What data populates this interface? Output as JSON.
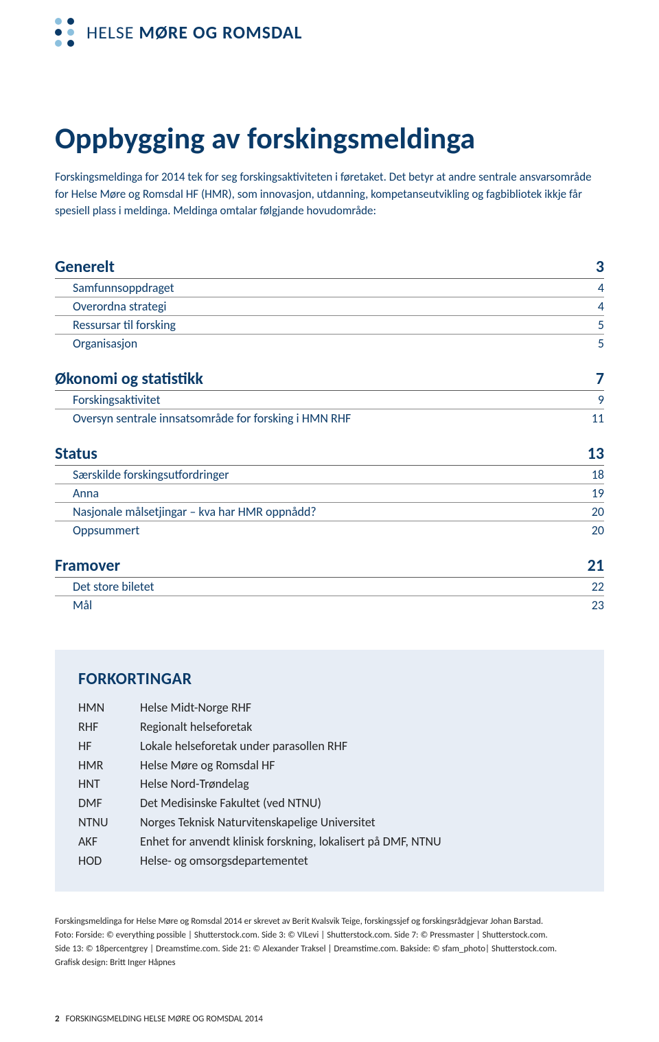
{
  "colors": {
    "brand_blue": "#0a3a68",
    "light_blue": "#8cc0de",
    "box_bg": "#e7edf5",
    "rule": "#888888",
    "rule_strong": "#555555",
    "text": "#222222",
    "background": "#ffffff"
  },
  "logo": {
    "text_light": "HELSE ",
    "text_bold": "MØRE OG ROMSDAL",
    "dot_colors": [
      "#8cc0de",
      "#0a3a68",
      "#0a3a68",
      "#8cc0de",
      "#8cc0de",
      "#0a3a68"
    ]
  },
  "title": "Oppbygging av forskingsmeldinga",
  "intro": "Forskingsmeldinga for 2014 tek for seg forskingsaktiviteten i føretaket. Det betyr at andre sentrale ansvarsområde for Helse Møre og Romsdal HF (HMR), som innovasjon, utdanning, kompetanseutvikling og fagbibliotek ikkje får spesiell plass i meldinga. Meldinga omtalar følgjande hovudområde:",
  "toc": [
    {
      "head": {
        "label": "Generelt",
        "page": "3"
      },
      "subs": [
        {
          "label": "Samfunnsoppdraget",
          "page": "4"
        },
        {
          "label": "Overordna strategi",
          "page": "4"
        },
        {
          "label": "Ressursar til forsking",
          "page": "5"
        },
        {
          "label": "Organisasjon",
          "page": "5"
        }
      ]
    },
    {
      "head": {
        "label": "Økonomi og statistikk",
        "page": "7"
      },
      "subs": [
        {
          "label": "Forskingsaktivitet",
          "page": "9"
        },
        {
          "label": "Oversyn sentrale innsatsområde for forsking i HMN RHF",
          "page": "11"
        }
      ]
    },
    {
      "head": {
        "label": "Status",
        "page": "13"
      },
      "subs": [
        {
          "label": "Særskilde forskingsutfordringer",
          "page": "18"
        },
        {
          "label": "Anna",
          "page": "19"
        },
        {
          "label": "Nasjonale målsetjingar – kva har HMR oppnådd?",
          "page": "20"
        },
        {
          "label": "Oppsummert",
          "page": "20"
        }
      ]
    },
    {
      "head": {
        "label": "Framover",
        "page": "21"
      },
      "subs": [
        {
          "label": "Det store biletet",
          "page": "22"
        },
        {
          "label": "Mål",
          "page": "23"
        }
      ]
    }
  ],
  "abbr": {
    "title": "FORKORTINGAR",
    "items": [
      {
        "key": "HMN",
        "val": "Helse Midt-Norge RHF"
      },
      {
        "key": "RHF",
        "val": "Regionalt helseforetak"
      },
      {
        "key": "HF",
        "val": "Lokale helseforetak under parasollen RHF"
      },
      {
        "key": "HMR",
        "val": "Helse Møre og Romsdal HF"
      },
      {
        "key": "HNT",
        "val": "Helse Nord-Trøndelag"
      },
      {
        "key": "DMF",
        "val": "Det Medisinske Fakultet (ved NTNU)"
      },
      {
        "key": "NTNU",
        "val": "Norges Teknisk Naturvitenskapelige Universitet"
      },
      {
        "key": "AKF",
        "val": "Enhet for anvendt klinisk forskning, lokalisert på DMF, NTNU"
      },
      {
        "key": "HOD",
        "val": "Helse- og omsorgsdepartementet"
      }
    ]
  },
  "credits": [
    "Forskingsmeldinga for Helse Møre og Romsdal 2014 er skrevet av Berit Kvalsvik Teige, forskingssjef og forskingsrådgjevar Johan Barstad.",
    "Foto: Forside: © everything possible | Shutterstock.com. Side 3: © VILevi | Shutterstock.com. Side 7: © Pressmaster | Shutterstock.com.",
    "Side 13: © 18percentgrey | Dreamstime.com. Side 21: © Alexander Traksel | Dreamstime.com. Bakside: © sfam_photo| Shutterstock.com.",
    "Grafisk design: Britt Inger Håpnes"
  ],
  "footer": {
    "page_number": "2",
    "text": "FORSKINGSMELDING HELSE MØRE OG ROMSDAL 2014"
  }
}
